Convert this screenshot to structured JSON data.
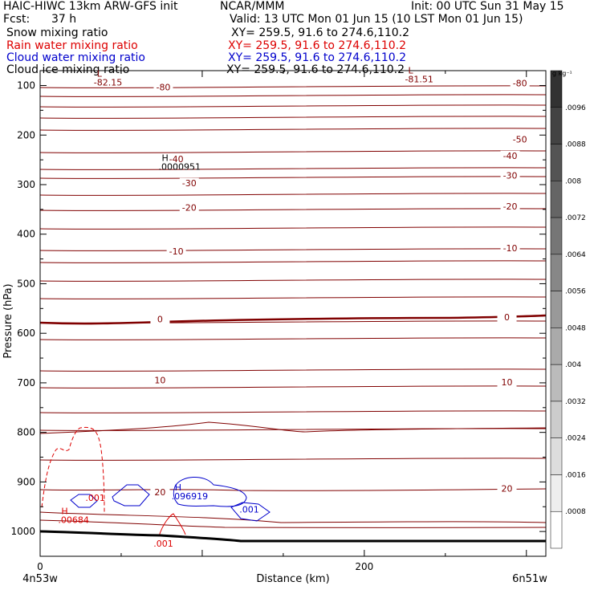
{
  "header": {
    "model": "HAIC-HIWC 13km ARW-GFS init",
    "org": "NCAR/MMM",
    "init": "Init: 00 UTC Sun 31 May 15",
    "fcst_label": "Fcst:",
    "fcst_value": "37 h",
    "valid": "Valid: 13 UTC Mon 01 Jun 15 (10 LST Mon 01 Jun 15)"
  },
  "fields": [
    {
      "name": "Snow mixing ratio",
      "xy": "XY= 259.5, 91.6 to 274.6,110.2",
      "color": "#000000"
    },
    {
      "name": "Rain water mixing ratio",
      "xy": "XY= 259.5, 91.6 to 274.6,110.2",
      "color": "#dd0000"
    },
    {
      "name": "Cloud water mixing ratio",
      "xy": "XY= 259.5, 91.6 to 274.6,110.2",
      "color": "#0000cc"
    },
    {
      "name": "Cloud ice mixing ratio",
      "xy": "XY= 259.5, 91.6 to 274.6,110.2",
      "color": "#000000"
    }
  ],
  "chart_data": {
    "type": "cross-section",
    "ylabel": "Pressure (hPa)",
    "xlabel": "Distance (km)",
    "x_left_label": "4n53w",
    "x_right_label": "6n51w",
    "xlim": [
      0,
      312
    ],
    "ylim": [
      1050,
      70
    ],
    "x_ticks": [
      0,
      200
    ],
    "y_ticks": [
      100,
      200,
      300,
      400,
      500,
      600,
      700,
      800,
      900,
      1000
    ],
    "colorbar": {
      "unit": "g kg⁻¹",
      "ticks": [
        ".0096",
        ".0088",
        ".008",
        ".0072",
        ".0064",
        ".0056",
        ".0048",
        ".004",
        ".0032",
        ".0024",
        ".0016",
        ".0008"
      ]
    },
    "temperature_contour_labels": [
      {
        "label": "-80",
        "x": 76,
        "p": 105
      },
      {
        "label": "-80",
        "x": 296,
        "p": 97
      },
      {
        "label": "-50",
        "x": 296,
        "p": 210
      },
      {
        "label": "-40",
        "x": 290,
        "p": 243
      },
      {
        "label": "-40",
        "x": 84,
        "p": 250
      },
      {
        "label": "-30",
        "x": 290,
        "p": 283
      },
      {
        "label": "-30",
        "x": 92,
        "p": 298
      },
      {
        "label": "-20",
        "x": 290,
        "p": 345
      },
      {
        "label": "-20",
        "x": 92,
        "p": 348
      },
      {
        "label": "-10",
        "x": 290,
        "p": 430
      },
      {
        "label": "-10",
        "x": 84,
        "p": 436
      },
      {
        "label": "0",
        "x": 288,
        "p": 569
      },
      {
        "label": "0",
        "x": 74,
        "p": 573
      },
      {
        "label": "10",
        "x": 288,
        "p": 700
      },
      {
        "label": "10",
        "x": 74,
        "p": 696
      },
      {
        "label": "20",
        "x": 288,
        "p": 915
      },
      {
        "label": "20",
        "x": 74,
        "p": 922
      }
    ],
    "extrema": [
      {
        "kind": "L",
        "value": "-82.15",
        "x": 40,
        "p": 92,
        "color": "#800000"
      },
      {
        "kind": "L",
        "value": "-81.51",
        "x": 232,
        "p": 85,
        "color": "#800000"
      },
      {
        "kind": "H",
        "value": ".0000951",
        "x": 80,
        "p": 262,
        "color": "#000000"
      },
      {
        "kind": "H",
        "value": ".096919",
        "x": 88,
        "p": 927,
        "color": "#0000cc"
      },
      {
        "kind": "H",
        "value": ".00684",
        "x": 18,
        "p": 975,
        "color": "#dd0000"
      }
    ],
    "contour_labels": [
      {
        "label": ".001",
        "x": 34,
        "p": 932,
        "color": "#dd0000"
      },
      {
        "label": ".001",
        "x": 76,
        "p": 1024,
        "color": "#dd0000"
      },
      {
        "label": ".001",
        "x": 129,
        "p": 955,
        "color": "#0000cc"
      }
    ]
  }
}
